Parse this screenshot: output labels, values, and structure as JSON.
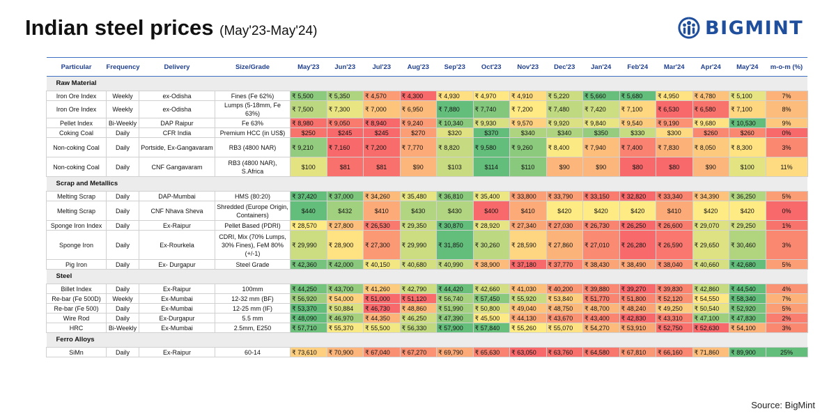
{
  "title": "Indian steel prices",
  "subtitle": "(May'23-May'24)",
  "brand": "BIGMINT",
  "source": "Source: BigMint",
  "colors": {
    "green": "#63be7b",
    "yellow": "#ffeb84",
    "red": "#f8696b",
    "header_text": "#1f3f8f",
    "brand": "#1f4e9c"
  },
  "chart_data": {
    "type": "table",
    "columns": [
      "Particular",
      "Frequency",
      "Delivery",
      "Size/Grade",
      "May'23",
      "Jun'23",
      "Jul'23",
      "Aug'23",
      "Sep'23",
      "Oct'23",
      "Nov'23",
      "Dec'23",
      "Jan'24",
      "Feb'24",
      "Mar'24",
      "Apr'24",
      "May'24",
      "m-o-m (%)"
    ],
    "sections": [
      {
        "name": "Raw Material",
        "rows": [
          {
            "particular": "Iron Ore Index",
            "frequency": "Weekly",
            "delivery": "ex-Odisha",
            "grade": "Fines (Fe 62%)",
            "values": [
              "₹ 5,500",
              "₹ 5,350",
              "₹ 4,570",
              "₹ 4,300",
              "₹ 4,930",
              "₹ 4,970",
              "₹ 4,910",
              "₹ 5,220",
              "₹ 5,660",
              "₹ 5,680",
              "₹ 4,950",
              "₹ 4,780",
              "₹ 5,100"
            ],
            "mom": "7%"
          },
          {
            "particular": "Iron Ore Index",
            "frequency": "Weekly",
            "delivery": "ex-Odisha",
            "grade": "Lumps (5-18mm, Fe 63%)",
            "values": [
              "₹ 7,500",
              "₹ 7,300",
              "₹ 7,000",
              "₹ 6,950",
              "₹ 7,880",
              "₹ 7,740",
              "₹ 7,200",
              "₹ 7,480",
              "₹ 7,420",
              "₹ 7,100",
              "₹ 6,530",
              "₹ 6,580",
              "₹ 7,100"
            ],
            "mom": "8%"
          },
          {
            "particular": "Pellet Index",
            "frequency": "Bi-Weekly",
            "delivery": "DAP Raipur",
            "grade": "Fe 63%",
            "values": [
              "₹ 8,980",
              "₹ 9,050",
              "₹ 8,940",
              "₹ 9,240",
              "₹ 10,340",
              "₹ 9,930",
              "₹ 9,570",
              "₹ 9,920",
              "₹ 9,840",
              "₹ 9,540",
              "₹ 9,190",
              "₹ 9,680",
              "₹ 10,530"
            ],
            "mom": "9%"
          },
          {
            "particular": "Coking Coal",
            "frequency": "Daily",
            "delivery": "CFR India",
            "grade": "Premium HCC (in US$)",
            "values": [
              "$250",
              "$245",
              "$245",
              "$270",
              "$320",
              "$370",
              "$340",
              "$340",
              "$350",
              "$330",
              "$300",
              "$260",
              "$260"
            ],
            "mom": "0%"
          },
          {
            "particular": "Non-coking Coal",
            "frequency": "Daily",
            "delivery": "Portside, Ex-Gangavaram",
            "grade": "RB3 (4800 NAR)",
            "values": [
              "₹ 9,210",
              "₹ 7,160",
              "₹ 7,200",
              "₹ 7,770",
              "₹ 8,820",
              "₹ 9,580",
              "₹ 9,260",
              "₹ 8,400",
              "₹ 7,940",
              "₹ 7,400",
              "₹ 7,830",
              "₹ 8,050",
              "₹ 8,300"
            ],
            "mom": "3%"
          },
          {
            "particular": "Non-coking Coal",
            "frequency": "Daily",
            "delivery": "CNF Gangavaram",
            "grade": "RB3 (4800 NAR), S.Africa",
            "values": [
              "$100",
              "$81",
              "$81",
              "$90",
              "$103",
              "$114",
              "$110",
              "$90",
              "$90",
              "$80",
              "$80",
              "$90",
              "$100"
            ],
            "mom": "11%"
          }
        ]
      },
      {
        "name": "Scrap and Metallics",
        "rows": [
          {
            "particular": "Melting Scrap",
            "frequency": "Daily",
            "delivery": "DAP-Mumbai",
            "grade": "HMS (80:20)",
            "values": [
              "₹ 37,420",
              "₹ 37,000",
              "₹ 34,260",
              "₹ 35,480",
              "₹ 36,810",
              "₹ 35,400",
              "₹ 33,800",
              "₹ 33,790",
              "₹ 33,150",
              "₹ 32,820",
              "₹ 33,340",
              "₹ 34,390",
              "₹ 36,250"
            ],
            "mom": "5%"
          },
          {
            "particular": "Melting Scrap",
            "frequency": "Daily",
            "delivery": "CNF Nhava Sheva",
            "grade": "Shredded (Europe Origin, Containers)",
            "values": [
              "$440",
              "$432",
              "$410",
              "$430",
              "$430",
              "$400",
              "$410",
              "$420",
              "$420",
              "$420",
              "$410",
              "$420",
              "$420"
            ],
            "mom": "0%"
          },
          {
            "particular": "Sponge Iron Index",
            "frequency": "Daily",
            "delivery": "Ex-Raipur",
            "grade": "Pellet Based (PDRI)",
            "values": [
              "₹ 28,570",
              "₹ 27,800",
              "₹ 26,530",
              "₹ 29,350",
              "₹ 30,870",
              "₹ 28,920",
              "₹ 27,340",
              "₹ 27,030",
              "₹ 26,730",
              "₹ 26,250",
              "₹ 26,600",
              "₹ 29,070",
              "₹ 29,250"
            ],
            "mom": "1%"
          },
          {
            "particular": "Sponge Iron",
            "frequency": "Daily",
            "delivery": "Ex-Rourkela",
            "grade": "CDRI, Mix (70% Lumps, 30% Fines), FeM 80% (+/-1)",
            "values": [
              "₹ 29,990",
              "₹ 28,900",
              "₹ 27,300",
              "₹ 29,990",
              "₹ 31,850",
              "₹ 30,260",
              "₹ 28,590",
              "₹ 27,860",
              "₹ 27,010",
              "₹ 26,280",
              "₹ 26,590",
              "₹ 29,650",
              "₹ 30,460"
            ],
            "mom": "3%"
          },
          {
            "particular": "Pig Iron",
            "frequency": "Daily",
            "delivery": "Ex- Durgapur",
            "grade": "Steel Grade",
            "values": [
              "₹ 42,360",
              "₹ 42,000",
              "₹ 40,150",
              "₹ 40,680",
              "₹ 40,990",
              "₹ 38,900",
              "₹ 37,180",
              "₹ 37,770",
              "₹ 38,430",
              "₹ 38,490",
              "₹ 38,040",
              "₹ 40,660",
              "₹ 42,680"
            ],
            "mom": "5%"
          }
        ]
      },
      {
        "name": "Steel",
        "rows": [
          {
            "particular": "Billet Index",
            "frequency": "Daily",
            "delivery": "Ex-Raipur",
            "grade": "100mm",
            "values": [
              "₹ 44,250",
              "₹ 43,700",
              "₹ 41,260",
              "₹ 42,790",
              "₹ 44,420",
              "₹ 42,660",
              "₹ 41,030",
              "₹ 40,200",
              "₹ 39,880",
              "₹ 39,270",
              "₹ 39,830",
              "₹ 42,860",
              "₹ 44,540"
            ],
            "mom": "4%"
          },
          {
            "particular": "Re-bar (Fe 500D)",
            "frequency": "Weekly",
            "delivery": "Ex-Mumbai",
            "grade": "12-32 mm (BF)",
            "values": [
              "₹ 56,920",
              "₹ 54,000",
              "₹ 51,000",
              "₹ 51,120",
              "₹ 56,740",
              "₹ 57,450",
              "₹ 55,920",
              "₹ 53,840",
              "₹ 51,770",
              "₹ 51,800",
              "₹ 52,120",
              "₹ 54,550",
              "₹ 58,340"
            ],
            "mom": "7%"
          },
          {
            "particular": "Re-bar (Fe 500)",
            "frequency": "Daily",
            "delivery": "Ex-Mumbai",
            "grade": "12-25 mm (IF)",
            "values": [
              "₹ 53,370",
              "₹ 50,884",
              "₹ 46,730",
              "₹ 48,860",
              "₹ 51,990",
              "₹ 50,800",
              "₹ 49,040",
              "₹ 48,750",
              "₹ 48,700",
              "₹ 48,240",
              "₹ 49,250",
              "₹ 50,540",
              "₹ 52,920"
            ],
            "mom": "5%"
          },
          {
            "particular": "Wire Rod",
            "frequency": "Daily",
            "delivery": "Ex-Durgapur",
            "grade": "5.5 mm",
            "values": [
              "₹ 48,090",
              "₹ 46,970",
              "₹ 44,350",
              "₹ 46,250",
              "₹ 47,390",
              "₹ 45,500",
              "₹ 44,130",
              "₹ 43,670",
              "₹ 43,400",
              "₹ 42,830",
              "₹ 43,310",
              "₹ 47,100",
              "₹ 47,830"
            ],
            "mom": "2%"
          },
          {
            "particular": "HRC",
            "frequency": "Bi-Weekly",
            "delivery": "Ex-Mumbai",
            "grade": "2.5mm, E250",
            "values": [
              "₹ 57,710",
              "₹ 55,370",
              "₹ 55,500",
              "₹ 56,330",
              "₹ 57,900",
              "₹ 57,840",
              "₹ 55,260",
              "₹ 55,070",
              "₹ 54,270",
              "₹ 53,910",
              "₹ 52,750",
              "₹ 52,630",
              "₹ 54,100"
            ],
            "mom": "3%"
          }
        ]
      },
      {
        "name": "Ferro Alloys",
        "rows": [
          {
            "particular": "SiMn",
            "frequency": "Daily",
            "delivery": "Ex-Raipur",
            "grade": "60-14",
            "values": [
              "₹ 73,610",
              "₹ 70,900",
              "₹ 67,040",
              "₹ 67,270",
              "₹ 69,790",
              "₹ 65,630",
              "₹ 63,050",
              "₹ 63,760",
              "₹ 64,580",
              "₹ 67,810",
              "₹ 66,160",
              "₹ 71,860",
              "₹ 89,900"
            ],
            "mom": "25%"
          }
        ]
      }
    ]
  }
}
